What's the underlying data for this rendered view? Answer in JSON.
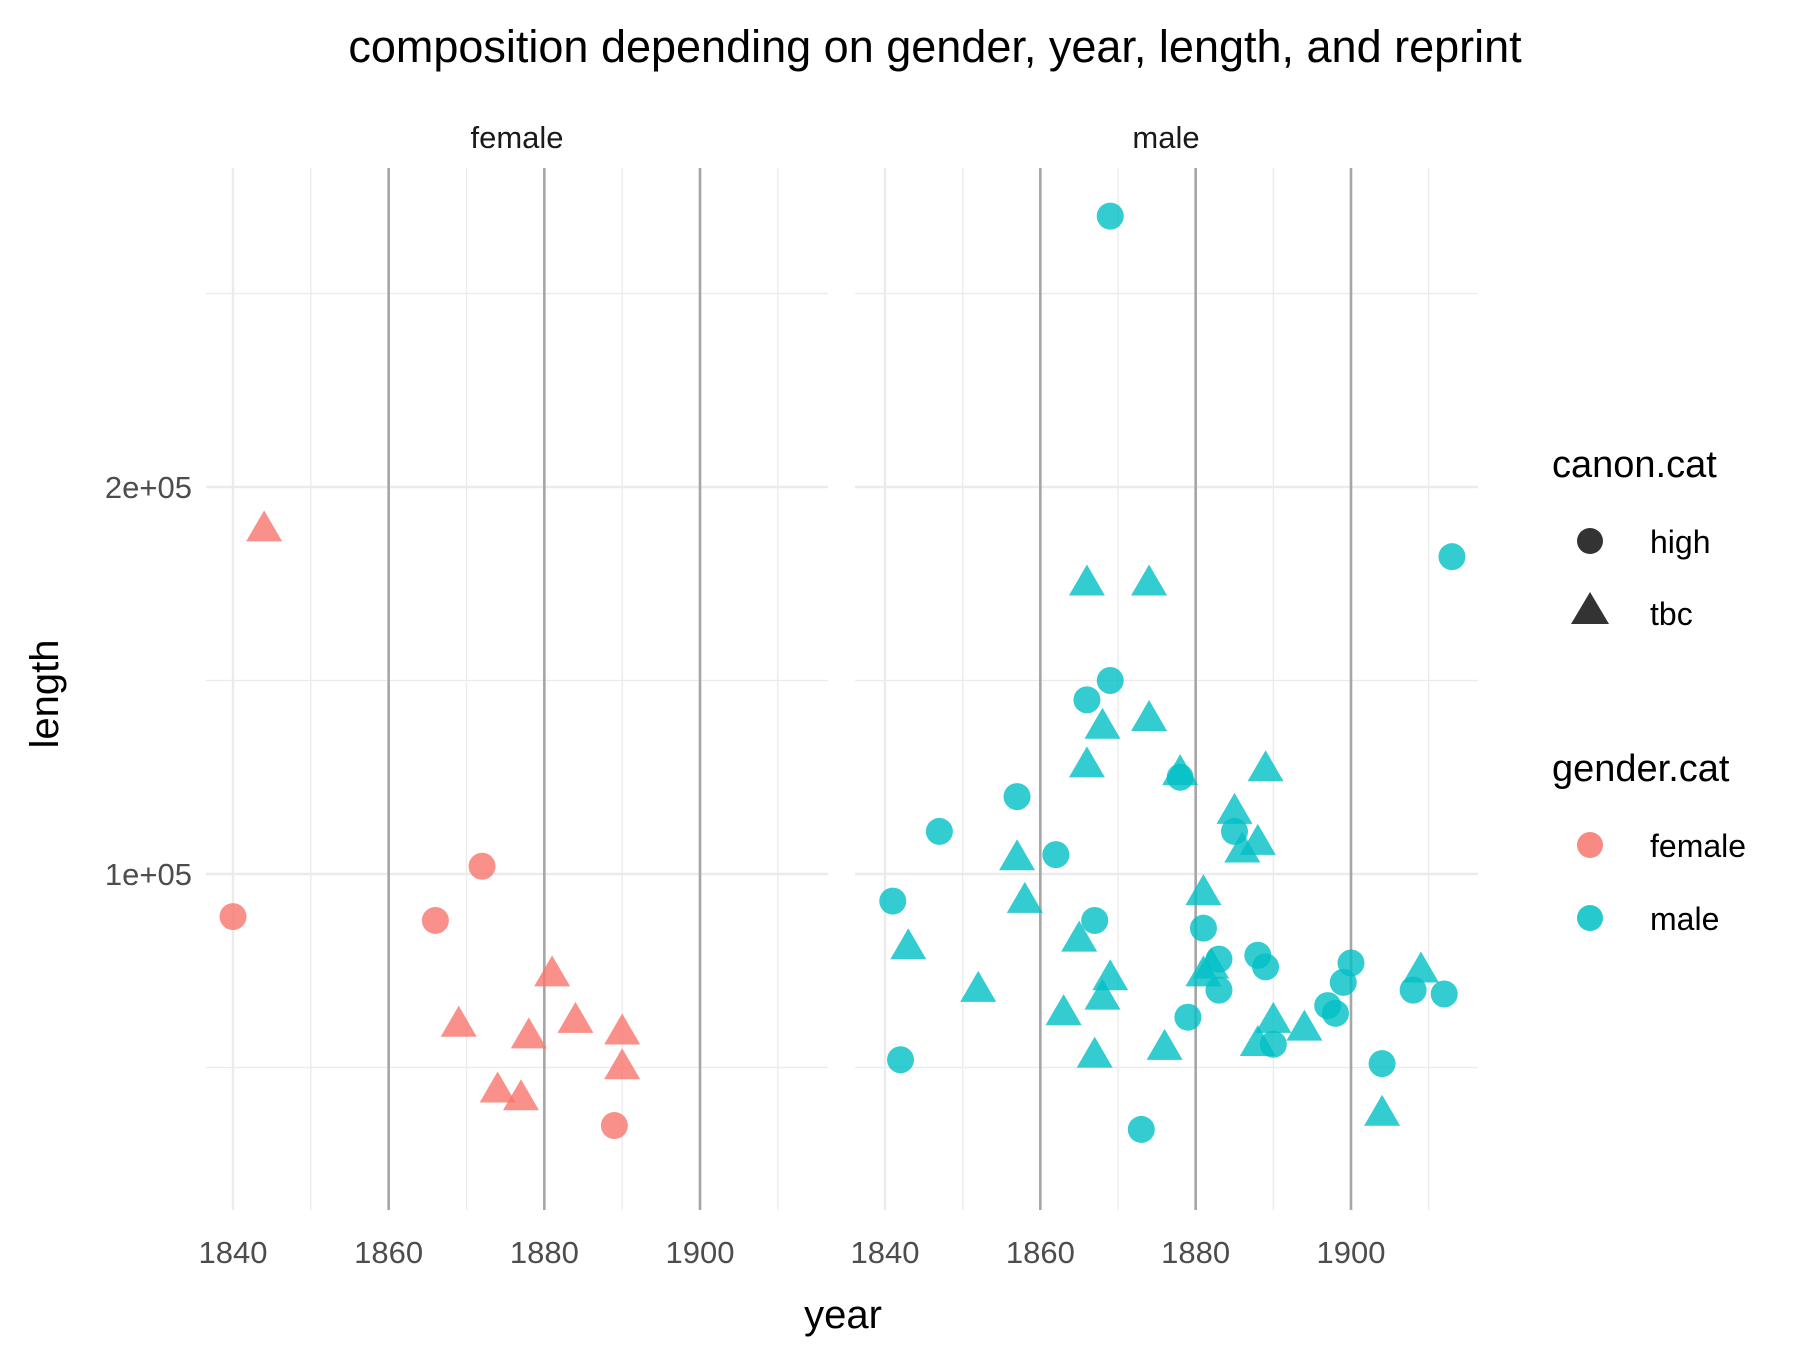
{
  "chart_data": {
    "type": "scatter",
    "title": "composition depending on gender, year, length, and reprint",
    "xlabel": "year",
    "ylabel": "length",
    "xlim": [
      1830,
      1915
    ],
    "ylim": [
      30000,
      270000
    ],
    "x_ticks": [
      1840,
      1860,
      1880,
      1900
    ],
    "x_tick_labels": [
      "1840",
      "1860",
      "1880",
      "1900"
    ],
    "y_ticks": [
      100000,
      200000
    ],
    "y_tick_labels": [
      "1e+05",
      "2e+05"
    ],
    "reference_lines_x": [
      1860,
      1880,
      1900
    ],
    "grid": true,
    "facets": [
      "female",
      "male"
    ],
    "legend_position": "right",
    "legends": [
      {
        "title": "canon.cat",
        "kind": "shape",
        "items": [
          {
            "label": "high",
            "shape": "circle"
          },
          {
            "label": "tbc",
            "shape": "triangle"
          }
        ]
      },
      {
        "title": "gender.cat",
        "kind": "color",
        "items": [
          {
            "label": "female",
            "color": "#F8766D"
          },
          {
            "label": "male",
            "color": "#00BFC4"
          }
        ]
      }
    ],
    "colors": {
      "female": "#F8766D",
      "male": "#00BFC4"
    },
    "series": [
      {
        "facet": "female",
        "gender": "female",
        "canon": "high",
        "points": [
          {
            "x": 1840,
            "y": 89000
          },
          {
            "x": 1866,
            "y": 88000
          },
          {
            "x": 1872,
            "y": 102000
          },
          {
            "x": 1889,
            "y": 35000
          }
        ]
      },
      {
        "facet": "female",
        "gender": "female",
        "canon": "tbc",
        "points": [
          {
            "x": 1844,
            "y": 189000
          },
          {
            "x": 1869,
            "y": 61000
          },
          {
            "x": 1874,
            "y": 44000
          },
          {
            "x": 1877,
            "y": 42000
          },
          {
            "x": 1878,
            "y": 58000
          },
          {
            "x": 1881,
            "y": 74000
          },
          {
            "x": 1884,
            "y": 62000
          },
          {
            "x": 1890,
            "y": 59000
          },
          {
            "x": 1890,
            "y": 50000
          }
        ]
      },
      {
        "facet": "male",
        "gender": "male",
        "canon": "high",
        "points": [
          {
            "x": 1841,
            "y": 93000
          },
          {
            "x": 1842,
            "y": 52000
          },
          {
            "x": 1847,
            "y": 111000
          },
          {
            "x": 1857,
            "y": 120000
          },
          {
            "x": 1862,
            "y": 105000
          },
          {
            "x": 1866,
            "y": 145000
          },
          {
            "x": 1867,
            "y": 88000
          },
          {
            "x": 1869,
            "y": 270000
          },
          {
            "x": 1869,
            "y": 150000
          },
          {
            "x": 1873,
            "y": 34000
          },
          {
            "x": 1878,
            "y": 125000
          },
          {
            "x": 1879,
            "y": 63000
          },
          {
            "x": 1881,
            "y": 86000
          },
          {
            "x": 1883,
            "y": 78000
          },
          {
            "x": 1883,
            "y": 70000
          },
          {
            "x": 1885,
            "y": 111000
          },
          {
            "x": 1888,
            "y": 79000
          },
          {
            "x": 1889,
            "y": 76000
          },
          {
            "x": 1890,
            "y": 56000
          },
          {
            "x": 1897,
            "y": 66000
          },
          {
            "x": 1898,
            "y": 64000
          },
          {
            "x": 1899,
            "y": 72000
          },
          {
            "x": 1900,
            "y": 77000
          },
          {
            "x": 1904,
            "y": 51000
          },
          {
            "x": 1908,
            "y": 70000
          },
          {
            "x": 1912,
            "y": 69000
          },
          {
            "x": 1913,
            "y": 182000
          }
        ]
      },
      {
        "facet": "male",
        "gender": "male",
        "canon": "tbc",
        "points": [
          {
            "x": 1843,
            "y": 81000
          },
          {
            "x": 1852,
            "y": 70000
          },
          {
            "x": 1857,
            "y": 104000
          },
          {
            "x": 1858,
            "y": 93000
          },
          {
            "x": 1863,
            "y": 64000
          },
          {
            "x": 1865,
            "y": 83000
          },
          {
            "x": 1866,
            "y": 175000
          },
          {
            "x": 1866,
            "y": 128000
          },
          {
            "x": 1867,
            "y": 53000
          },
          {
            "x": 1868,
            "y": 138000
          },
          {
            "x": 1868,
            "y": 68000
          },
          {
            "x": 1869,
            "y": 73000
          },
          {
            "x": 1874,
            "y": 175000
          },
          {
            "x": 1874,
            "y": 140000
          },
          {
            "x": 1876,
            "y": 55000
          },
          {
            "x": 1878,
            "y": 126000
          },
          {
            "x": 1881,
            "y": 95000
          },
          {
            "x": 1881,
            "y": 74000
          },
          {
            "x": 1882,
            "y": 76000
          },
          {
            "x": 1885,
            "y": 116000
          },
          {
            "x": 1886,
            "y": 106000
          },
          {
            "x": 1888,
            "y": 108000
          },
          {
            "x": 1889,
            "y": 127000
          },
          {
            "x": 1888,
            "y": 56000
          },
          {
            "x": 1890,
            "y": 62000
          },
          {
            "x": 1894,
            "y": 60000
          },
          {
            "x": 1904,
            "y": 38000
          },
          {
            "x": 1909,
            "y": 75000
          }
        ]
      }
    ]
  }
}
